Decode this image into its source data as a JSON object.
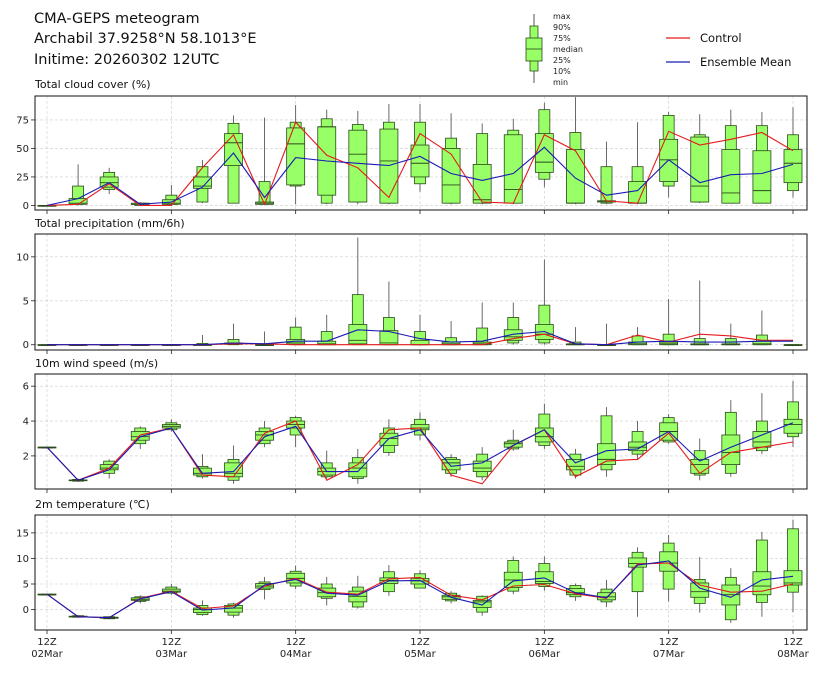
{
  "header": {
    "title": "CMA-GEPS meteogram",
    "location": "Archabil 37.9258°N 58.1013°E",
    "initime": "Initime: 20260302 12UTC"
  },
  "legend": {
    "box_labels": [
      "max",
      "90%",
      "75%",
      "median",
      "25%",
      "10%",
      "min"
    ],
    "control_label": "Control",
    "mean_label": "Ensemble Mean"
  },
  "colors": {
    "box_fill": "#99ff66",
    "box_edge": "#2a4a1a",
    "control": "#e41a1c",
    "mean": "#1a1ab5",
    "grid": "#cccccc"
  },
  "chart_data": [
    {
      "type": "box",
      "id": "cloud",
      "title": "Total cloud cover (%)",
      "ylim": [
        -4,
        96
      ],
      "yticks": [
        0,
        25,
        50,
        75
      ],
      "grid": true,
      "boxes": [
        [
          0,
          0,
          0,
          0,
          0,
          0,
          0
        ],
        [
          0,
          1,
          1,
          2,
          6,
          17,
          36
        ],
        [
          10,
          14,
          16,
          20,
          25,
          29,
          33
        ],
        [
          0,
          0,
          1,
          1,
          2,
          2,
          3
        ],
        [
          0,
          1,
          1,
          2,
          5,
          9,
          18
        ],
        [
          2,
          3,
          15,
          17,
          25,
          34,
          40
        ],
        [
          2,
          2,
          35,
          55,
          63,
          72,
          79
        ],
        [
          1,
          1,
          1,
          2,
          3,
          21,
          77
        ],
        [
          1,
          17,
          18,
          54,
          68,
          73,
          88
        ],
        [
          1,
          2,
          9,
          69,
          69,
          76,
          84
        ],
        [
          1,
          3,
          3,
          45,
          66,
          71,
          83
        ],
        [
          1,
          2,
          2,
          39,
          67,
          73,
          89
        ],
        [
          12,
          19,
          25,
          37,
          53,
          73,
          89
        ],
        [
          1,
          2,
          2,
          18,
          50,
          59,
          81
        ],
        [
          1,
          2,
          2,
          5,
          36,
          63,
          72
        ],
        [
          1,
          2,
          2,
          14,
          62,
          66,
          76
        ],
        [
          16,
          23,
          29,
          38,
          63,
          84,
          90
        ],
        [
          1,
          2,
          2,
          2,
          49,
          64,
          95
        ],
        [
          1,
          2,
          3,
          4,
          4,
          34,
          56
        ],
        [
          1,
          2,
          2,
          2,
          21,
          34,
          73
        ],
        [
          7,
          17,
          21,
          40,
          58,
          79,
          82
        ],
        [
          2,
          3,
          3,
          17,
          60,
          62,
          80
        ],
        [
          2,
          2,
          2,
          11,
          49,
          70,
          84
        ],
        [
          2,
          2,
          2,
          13,
          48,
          70,
          82
        ],
        [
          7,
          13,
          20,
          37,
          49,
          62,
          86
        ]
      ],
      "control": [
        0,
        1,
        19,
        0,
        0,
        33,
        62,
        1,
        73,
        44,
        33,
        7,
        63,
        45,
        3,
        2,
        62,
        48,
        4,
        2,
        65,
        53,
        58,
        64,
        48
      ],
      "mean": [
        0,
        6,
        20,
        1,
        3,
        16,
        46,
        7,
        42,
        39,
        37,
        35,
        43,
        28,
        22,
        28,
        51,
        24,
        9,
        13,
        40,
        20,
        27,
        28,
        36
      ]
    },
    {
      "type": "box",
      "id": "precip",
      "title": "Total precipitation (mm/6h)",
      "ylim": [
        -0.6,
        12.6
      ],
      "yticks": [
        0,
        5,
        10
      ],
      "grid": true,
      "boxes": [
        [
          0,
          0,
          0,
          0,
          0,
          0,
          0
        ],
        [
          0,
          0,
          0,
          0,
          0,
          0,
          0
        ],
        [
          0,
          0,
          0,
          0,
          0,
          0,
          0
        ],
        [
          0,
          0,
          0,
          0,
          0,
          0,
          0
        ],
        [
          0,
          0,
          0,
          0,
          0,
          0,
          0
        ],
        [
          0,
          0,
          0,
          0,
          0,
          0.15,
          1.1
        ],
        [
          0,
          0,
          0.05,
          0.1,
          0.2,
          0.6,
          2.4
        ],
        [
          0,
          0,
          0,
          0,
          0,
          0,
          1.5
        ],
        [
          0,
          0,
          0.05,
          0.2,
          0.6,
          2.0,
          3.1
        ],
        [
          0,
          0,
          0,
          0.1,
          0.4,
          1.5,
          3.4
        ],
        [
          0,
          0,
          0.1,
          0.5,
          2.3,
          5.7,
          12.2
        ],
        [
          0,
          0,
          0,
          0.2,
          1.6,
          3.1,
          7.2
        ],
        [
          0,
          0,
          0,
          0,
          0.5,
          1.5,
          3.4
        ],
        [
          0,
          0,
          0,
          0.1,
          0.3,
          0.8,
          2.7
        ],
        [
          0,
          0,
          0,
          0.1,
          0.3,
          1.9,
          4.8
        ],
        [
          0,
          0.2,
          0.5,
          0.9,
          1.7,
          3.1,
          4.8
        ],
        [
          0,
          0.2,
          0.6,
          1.2,
          2.3,
          4.5,
          9.7
        ],
        [
          0,
          0,
          0,
          0,
          0.1,
          0.3,
          2.0
        ],
        [
          0,
          0,
          0,
          0,
          0,
          0,
          2.4
        ],
        [
          0,
          0,
          0,
          0.1,
          0.3,
          1.0,
          2.0
        ],
        [
          0,
          0,
          0,
          0.1,
          0.3,
          1.2,
          5.2
        ],
        [
          0,
          0,
          0,
          0,
          0.1,
          0.7,
          7.3
        ],
        [
          0,
          0,
          0,
          0,
          0.1,
          0.7,
          2.4
        ],
        [
          0,
          0,
          0,
          0.1,
          0.4,
          1.1,
          3.9
        ],
        [
          0,
          0,
          0,
          0,
          0,
          0,
          0
        ]
      ],
      "control": [
        0,
        0,
        0,
        0,
        0,
        0,
        0.1,
        0.1,
        0,
        0,
        0,
        0,
        0,
        0,
        0,
        0.7,
        1.2,
        0.1,
        0,
        1.1,
        0.3,
        1.2,
        1.0,
        0.5,
        0.5
      ],
      "mean": [
        0,
        0,
        0,
        0,
        0,
        0,
        0.2,
        0.1,
        0.4,
        0.4,
        1.7,
        1.5,
        0.7,
        0.3,
        0.4,
        1.2,
        1.5,
        0.1,
        0.0,
        0.3,
        0.4,
        0.3,
        0.3,
        0.4,
        0.4
      ]
    },
    {
      "type": "box",
      "id": "wind",
      "title": "10m wind speed (m/s)",
      "ylim": [
        0.1,
        6.7
      ],
      "yticks": [
        2,
        4,
        6
      ],
      "grid": true,
      "boxes": [
        [
          2.5,
          2.5,
          2.5,
          2.5,
          2.5,
          2.5,
          2.5
        ],
        [
          0.5,
          0.55,
          0.58,
          0.6,
          0.62,
          0.65,
          0.7
        ],
        [
          0.7,
          1.0,
          1.2,
          1.3,
          1.5,
          1.7,
          1.8
        ],
        [
          2.4,
          2.7,
          2.9,
          3.1,
          3.4,
          3.6,
          3.7
        ],
        [
          3.4,
          3.5,
          3.6,
          3.7,
          3.8,
          3.9,
          4.1
        ],
        [
          0.7,
          0.8,
          0.9,
          1.0,
          1.3,
          1.4,
          2.1
        ],
        [
          0.4,
          0.6,
          0.8,
          1.0,
          1.6,
          1.8,
          2.6
        ],
        [
          2.5,
          2.7,
          2.9,
          3.2,
          3.4,
          3.6,
          4.0
        ],
        [
          2.5,
          3.2,
          3.6,
          3.8,
          4.0,
          4.2,
          4.3
        ],
        [
          0.7,
          0.8,
          0.9,
          1.1,
          1.3,
          1.6,
          2.3
        ],
        [
          0.4,
          0.7,
          0.8,
          1.3,
          1.6,
          1.9,
          2.4
        ],
        [
          2.0,
          2.2,
          2.6,
          3.0,
          3.3,
          3.6,
          4.1
        ],
        [
          2.9,
          3.2,
          3.5,
          3.6,
          3.8,
          4.1,
          4.5
        ],
        [
          0.8,
          1.0,
          1.2,
          1.6,
          1.8,
          1.9,
          2.1
        ],
        [
          0.6,
          0.8,
          1.1,
          1.3,
          1.7,
          2.1,
          2.5
        ],
        [
          2.3,
          2.4,
          2.5,
          2.7,
          2.8,
          2.9,
          3.5
        ],
        [
          2.4,
          2.6,
          2.8,
          3.1,
          3.6,
          4.4,
          5.0
        ],
        [
          0.7,
          0.9,
          1.2,
          1.4,
          1.8,
          2.1,
          2.4
        ],
        [
          0.8,
          1.2,
          1.5,
          1.8,
          2.7,
          4.3,
          4.8
        ],
        [
          1.8,
          2.1,
          2.3,
          2.5,
          2.8,
          3.4,
          4.0
        ],
        [
          2.7,
          2.8,
          2.9,
          3.4,
          3.9,
          4.2,
          4.4
        ],
        [
          0.6,
          0.9,
          1.0,
          1.5,
          1.8,
          2.3,
          3.0
        ],
        [
          0.8,
          1.0,
          1.5,
          2.2,
          3.2,
          4.5,
          5.2
        ],
        [
          2.1,
          2.3,
          2.5,
          2.8,
          3.4,
          4.0,
          5.6
        ],
        [
          2.5,
          3.1,
          3.3,
          3.8,
          4.1,
          5.1,
          6.3
        ]
      ],
      "control": [
        2.5,
        0.6,
        1.3,
        3.2,
        3.6,
        0.9,
        0.8,
        3.3,
        4.0,
        0.6,
        1.5,
        3.5,
        3.6,
        0.9,
        0.4,
        2.6,
        3.5,
        0.8,
        1.7,
        1.8,
        3.3,
        1.0,
        2.2,
        2.5,
        2.8
      ],
      "mean": [
        2.5,
        0.6,
        1.2,
        3.1,
        3.6,
        1.0,
        1.1,
        3.1,
        3.7,
        1.1,
        1.1,
        3.0,
        3.5,
        1.4,
        1.6,
        2.6,
        3.5,
        1.6,
        2.3,
        2.4,
        3.4,
        1.7,
        2.5,
        3.2,
        3.9
      ]
    },
    {
      "type": "box",
      "id": "temp",
      "title": "2m temperature (℃)",
      "ylim": [
        -4,
        18.5
      ],
      "yticks": [
        0,
        5,
        10,
        15
      ],
      "grid": true,
      "boxes": [
        [
          3,
          3,
          3,
          3,
          3,
          3,
          3
        ],
        [
          -1.6,
          -1.5,
          -1.4,
          -1.4,
          -1.3,
          -1.2,
          -1.1
        ],
        [
          -1.9,
          -1.8,
          -1.7,
          -1.6,
          -1.5,
          -1.4,
          -1.3
        ],
        [
          1.2,
          1.6,
          1.8,
          2.0,
          2.3,
          2.5,
          2.8
        ],
        [
          2.9,
          3.2,
          3.4,
          3.6,
          4.0,
          4.4,
          5.0
        ],
        [
          -1.2,
          -1.0,
          -0.6,
          0.0,
          0.3,
          0.8,
          1.8
        ],
        [
          -1.6,
          -1.1,
          -0.5,
          0.3,
          0.8,
          1.1,
          1.3
        ],
        [
          2.0,
          3.9,
          4.2,
          4.6,
          5.1,
          5.4,
          6.4
        ],
        [
          4.0,
          4.6,
          5.2,
          6.1,
          7.1,
          7.5,
          8.6
        ],
        [
          0.8,
          2.2,
          2.5,
          3.3,
          4.2,
          5.0,
          6.4
        ],
        [
          0.2,
          0.5,
          1.5,
          2.6,
          3.6,
          4.4,
          6.6
        ],
        [
          2.7,
          3.5,
          5.1,
          5.7,
          6.2,
          7.4,
          8.7
        ],
        [
          4.2,
          4.2,
          5.0,
          5.6,
          6.1,
          7.0,
          7.7
        ],
        [
          1.2,
          1.7,
          2.0,
          2.5,
          2.8,
          3.2,
          3.6
        ],
        [
          -1.2,
          -0.5,
          0.4,
          1.5,
          1.8,
          2.6,
          2.8
        ],
        [
          3.0,
          3.6,
          4.3,
          5.8,
          7.3,
          9.6,
          10.4
        ],
        [
          3.7,
          4.5,
          5.1,
          5.5,
          7.4,
          9.0,
          10.4
        ],
        [
          1.7,
          2.5,
          2.9,
          3.3,
          4.1,
          4.7,
          5.1
        ],
        [
          0.5,
          1.5,
          1.9,
          2.5,
          3.3,
          4.0,
          5.8
        ],
        [
          -1.4,
          3.5,
          8.3,
          9.0,
          10.1,
          11.2,
          12.2
        ],
        [
          1.6,
          4.0,
          7.5,
          9.1,
          11.3,
          13.0,
          14.6
        ],
        [
          -0.6,
          1.2,
          2.4,
          3.5,
          5.2,
          5.9,
          10.3
        ],
        [
          -2.6,
          -2.0,
          0.9,
          2.9,
          4.8,
          6.3,
          8.1
        ],
        [
          -1.4,
          1.4,
          2.9,
          4.6,
          7.4,
          13.6,
          15.2
        ],
        [
          -0.5,
          3.4,
          4.8,
          5.2,
          7.6,
          15.8,
          17.6
        ]
      ],
      "control": [
        3,
        -1.4,
        -1.6,
        2.2,
        3.6,
        0.2,
        0.7,
        4.6,
        6.1,
        3.4,
        3.0,
        6.0,
        6.3,
        2.8,
        1.9,
        4.6,
        4.9,
        3.1,
        2.2,
        8.9,
        9.1,
        4.8,
        3.4,
        3.6,
        5.0
      ],
      "mean": [
        3,
        -1.4,
        -1.6,
        2.1,
        3.5,
        -0.1,
        0.3,
        4.8,
        5.9,
        3.2,
        2.8,
        5.6,
        5.7,
        2.4,
        0.9,
        5.6,
        6.2,
        3.3,
        2.3,
        8.7,
        9.5,
        4.2,
        2.4,
        5.8,
        6.5
      ]
    }
  ],
  "xaxis": {
    "steps": 25,
    "ticks": [
      {
        "step": 0,
        "hour": "12Z",
        "date": "02Mar"
      },
      {
        "step": 4,
        "hour": "12Z",
        "date": "03Mar"
      },
      {
        "step": 8,
        "hour": "12Z",
        "date": "04Mar"
      },
      {
        "step": 12,
        "hour": "12Z",
        "date": "05Mar"
      },
      {
        "step": 16,
        "hour": "12Z",
        "date": "06Mar"
      },
      {
        "step": 20,
        "hour": "12Z",
        "date": "07Mar"
      },
      {
        "step": 24,
        "hour": "12Z",
        "date": "08Mar"
      }
    ]
  }
}
